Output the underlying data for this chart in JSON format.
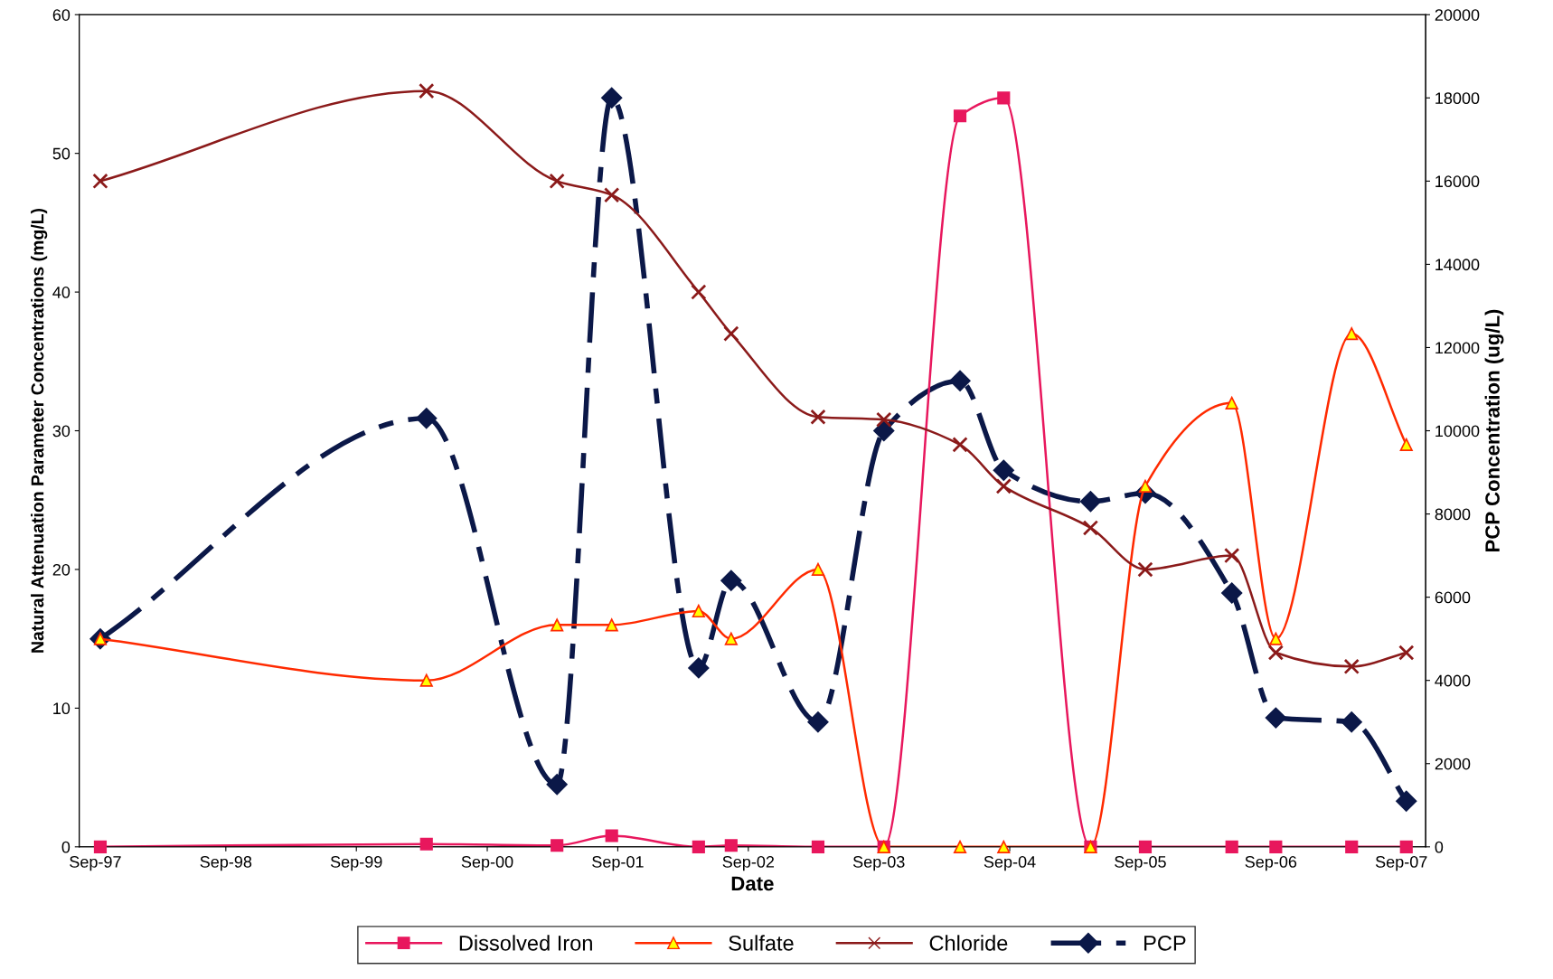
{
  "chart_data": {
    "type": "line",
    "xlabel": "Date",
    "ylabel": "Natural Attenuation Parameter Concentrations (mg/L)",
    "y2label": "PCP Concentration (ug/L)",
    "x": [
      "1997-09",
      "2000-03",
      "2001-03",
      "2001-08",
      "2002-04",
      "2002-07",
      "2003-03",
      "2003-09",
      "2004-04",
      "2004-08",
      "2005-04",
      "2005-09",
      "2006-05",
      "2006-09",
      "2007-04",
      "2007-09"
    ],
    "xlim": [
      "1997-07-18",
      "2007-11-08"
    ],
    "xticks": [
      {
        "value": "1997-09-01",
        "label": "Sep-97"
      },
      {
        "value": "1998-09-01",
        "label": "Sep-98"
      },
      {
        "value": "1999-09-01",
        "label": "Sep-99"
      },
      {
        "value": "2000-09-01",
        "label": "Sep-00"
      },
      {
        "value": "2001-09-01",
        "label": "Sep-01"
      },
      {
        "value": "2002-09-01",
        "label": "Sep-02"
      },
      {
        "value": "2003-09-01",
        "label": "Sep-03"
      },
      {
        "value": "2004-09-01",
        "label": "Sep-04"
      },
      {
        "value": "2005-09-01",
        "label": "Sep-05"
      },
      {
        "value": "2006-09-01",
        "label": "Sep-06"
      },
      {
        "value": "2007-09-01",
        "label": "Sep-07"
      }
    ],
    "ylim": [
      0,
      60
    ],
    "yticks": [
      0,
      10,
      20,
      30,
      40,
      50,
      60
    ],
    "y2lim": [
      0,
      20000
    ],
    "y2ticks": [
      0,
      2000,
      4000,
      6000,
      8000,
      10000,
      12000,
      14000,
      16000,
      18000,
      20000
    ],
    "grid": false,
    "legend": "bottom",
    "series": [
      {
        "name": "Dissolved Iron",
        "color": "#e8175d",
        "marker": "square",
        "line_style": "solid",
        "values": [
          0,
          0.2,
          0.1,
          0.8,
          0,
          0.1,
          0,
          0,
          52.7,
          54,
          0,
          0,
          0,
          0,
          0,
          0
        ]
      },
      {
        "name": "Sulfate",
        "color": "#ff2a00",
        "marker": "triangle",
        "line_style": "solid",
        "values": [
          15,
          12,
          16,
          16,
          17,
          15,
          20,
          0,
          0,
          0,
          0,
          26,
          32,
          15,
          37,
          29
        ]
      },
      {
        "name": "Chloride",
        "color": "#8b1a1a",
        "marker": "cross",
        "line_style": "solid",
        "values": [
          48,
          54.5,
          48,
          47,
          40,
          37,
          31,
          30.8,
          29,
          26,
          23,
          20,
          21,
          14,
          13,
          14
        ]
      },
      {
        "name": "PCP",
        "color": "#0b1848",
        "marker": "diamond",
        "line_style": "dashed",
        "axis": "y2",
        "values": [
          5000,
          10300,
          1500,
          18000,
          4300,
          6400,
          3000,
          10000,
          11200,
          9050,
          8300,
          8500,
          6100,
          3100,
          3000,
          1100
        ]
      }
    ]
  }
}
